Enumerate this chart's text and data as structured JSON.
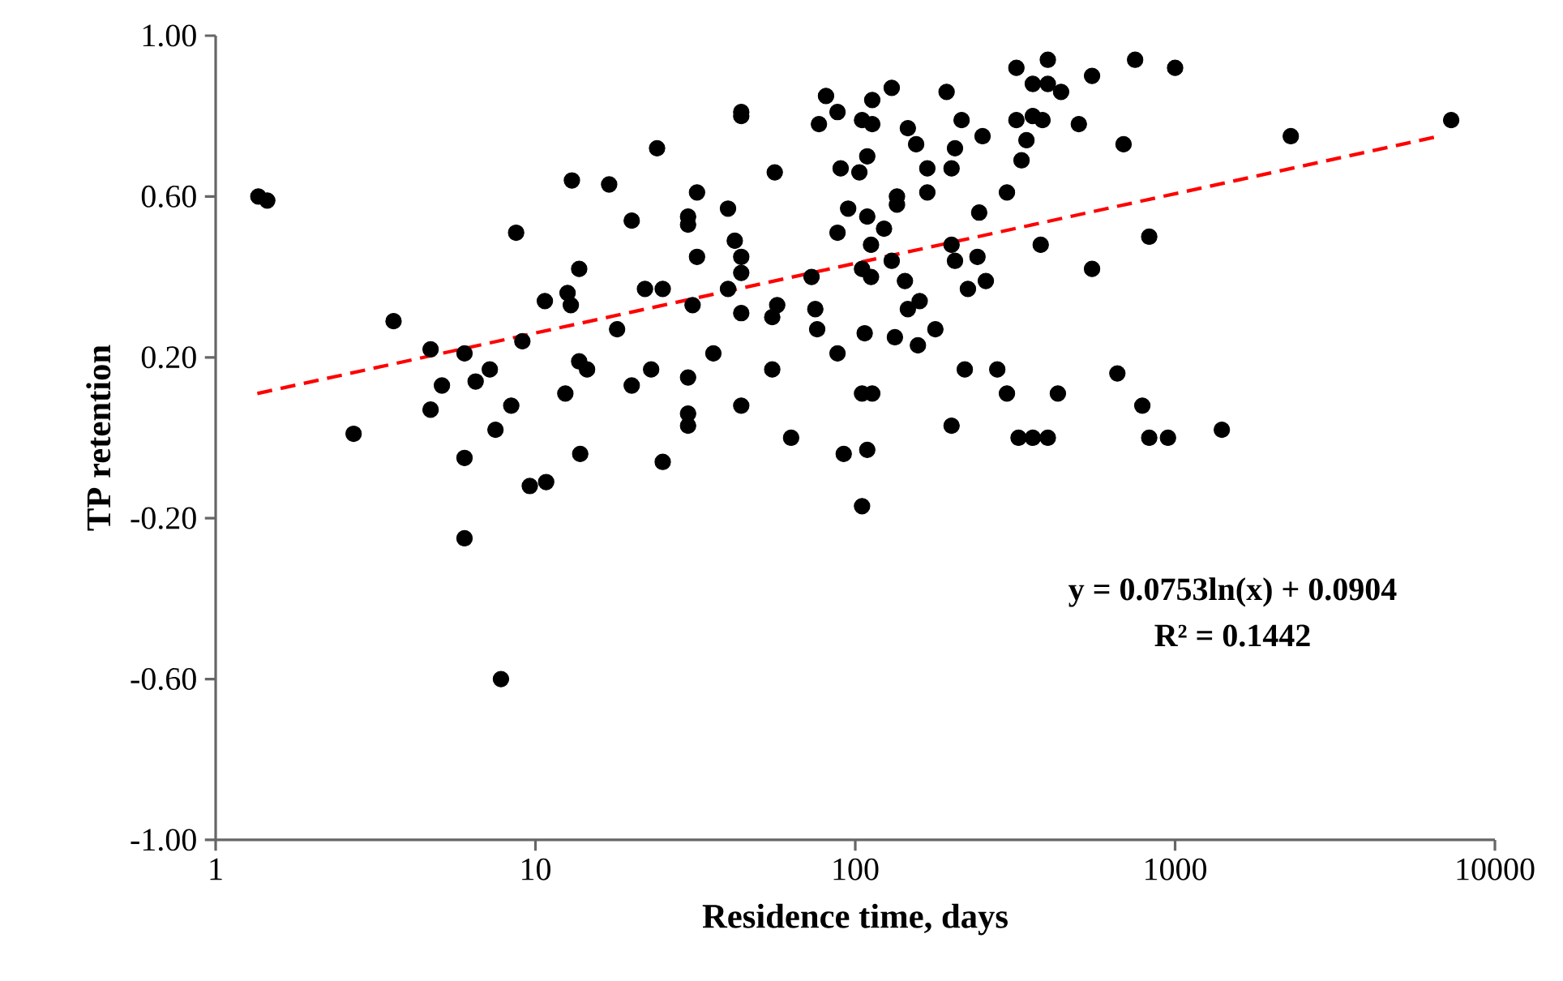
{
  "chart_data": {
    "type": "scatter",
    "xlabel": "Residence time, days",
    "ylabel": "TP retention",
    "log": "x",
    "xlim": [
      1,
      10000
    ],
    "xticks": [
      1,
      10,
      100,
      1000,
      10000
    ],
    "ylim": [
      -1,
      1
    ],
    "yticks": [
      {
        "value": -1,
        "label": "-1.00"
      },
      {
        "value": -0.6,
        "label": "-0.60"
      },
      {
        "value": -0.2,
        "label": "-0.20"
      },
      {
        "value": 0.2,
        "label": "0.20"
      },
      {
        "value": 0.6,
        "label": "0.60"
      },
      {
        "value": 1,
        "label": "1.00"
      }
    ],
    "annotations": [
      "y = 0.0753ln(x) + 0.0904",
      "R² = 0.1442"
    ],
    "series": [
      {
        "color": "#000000",
        "marker": "circle",
        "x": [
          1.36,
          1.45,
          8.7,
          3.6,
          4.7,
          6.0,
          9.1,
          7.2,
          5.1,
          6.5,
          4.7,
          8.4,
          7.5,
          2.7,
          6.0,
          9.6,
          6.0,
          7.8,
          24,
          13,
          17,
          56,
          32,
          40,
          30,
          30,
          20,
          42,
          32,
          44,
          44,
          40,
          13.7,
          22,
          25,
          12.6,
          10.7,
          12.9,
          31,
          44,
          57,
          55,
          18,
          13.7,
          14.5,
          23,
          20,
          30,
          36,
          55,
          12.4,
          44,
          30,
          30,
          63,
          13.8,
          25,
          10.8,
          44,
          44,
          81,
          77,
          88,
          113,
          130,
          105,
          113,
          193,
          215,
          250,
          319,
          359,
          319,
          359,
          343,
          331,
          146,
          155,
          205,
          200,
          168,
          168,
          109,
          90,
          103,
          135,
          135,
          298,
          244,
          95,
          109,
          88,
          123,
          112,
          73,
          105,
          112,
          130,
          200,
          205,
          241,
          225,
          256,
          143,
          159,
          146,
          75,
          76,
          107,
          133,
          157,
          178,
          88,
          220,
          278,
          298,
          105,
          113,
          200,
          92,
          109,
          105,
          324,
          359,
          400,
          750,
          1000,
          550,
          400,
          440,
          385,
          500,
          690,
          380,
          830,
          550,
          660,
          430,
          790,
          400,
          830,
          950,
          1400,
          2300,
          7300
        ],
        "values": [
          0.6,
          0.59,
          0.51,
          0.29,
          0.22,
          0.21,
          0.24,
          0.17,
          0.13,
          0.14,
          0.07,
          0.08,
          0.02,
          0.01,
          -0.05,
          -0.12,
          -0.25,
          -0.6,
          0.72,
          0.64,
          0.63,
          0.66,
          0.61,
          0.57,
          0.55,
          0.53,
          0.54,
          0.49,
          0.45,
          0.45,
          0.41,
          0.37,
          0.42,
          0.37,
          0.37,
          0.36,
          0.34,
          0.33,
          0.33,
          0.31,
          0.33,
          0.3,
          0.27,
          0.19,
          0.17,
          0.17,
          0.13,
          0.15,
          0.21,
          0.17,
          0.11,
          0.08,
          0.06,
          0.03,
          0.0,
          -0.04,
          -0.06,
          -0.11,
          0.81,
          0.8,
          0.85,
          0.78,
          0.81,
          0.84,
          0.87,
          0.79,
          0.78,
          0.86,
          0.79,
          0.75,
          0.92,
          0.88,
          0.79,
          0.8,
          0.74,
          0.69,
          0.77,
          0.73,
          0.72,
          0.67,
          0.67,
          0.61,
          0.7,
          0.67,
          0.66,
          0.6,
          0.58,
          0.61,
          0.56,
          0.57,
          0.55,
          0.51,
          0.52,
          0.48,
          0.4,
          0.42,
          0.4,
          0.44,
          0.48,
          0.44,
          0.45,
          0.37,
          0.39,
          0.39,
          0.34,
          0.32,
          0.32,
          0.27,
          0.26,
          0.25,
          0.23,
          0.27,
          0.21,
          0.17,
          0.17,
          0.11,
          0.11,
          0.11,
          0.03,
          -0.04,
          -0.03,
          -0.17,
          0.0,
          0.0,
          0.94,
          0.94,
          0.92,
          0.9,
          0.88,
          0.86,
          0.79,
          0.78,
          0.73,
          0.48,
          0.5,
          0.42,
          0.16,
          0.11,
          0.08,
          0.0,
          0.0,
          0.0,
          0.02,
          0.75,
          0.79
        ]
      },
      {
        "type": "line",
        "color": "#ff0000",
        "line_style": "dashed",
        "marker": "none",
        "x": [
          1.35,
          6700
        ],
        "values": [
          0.11,
          0.75
        ]
      }
    ]
  }
}
